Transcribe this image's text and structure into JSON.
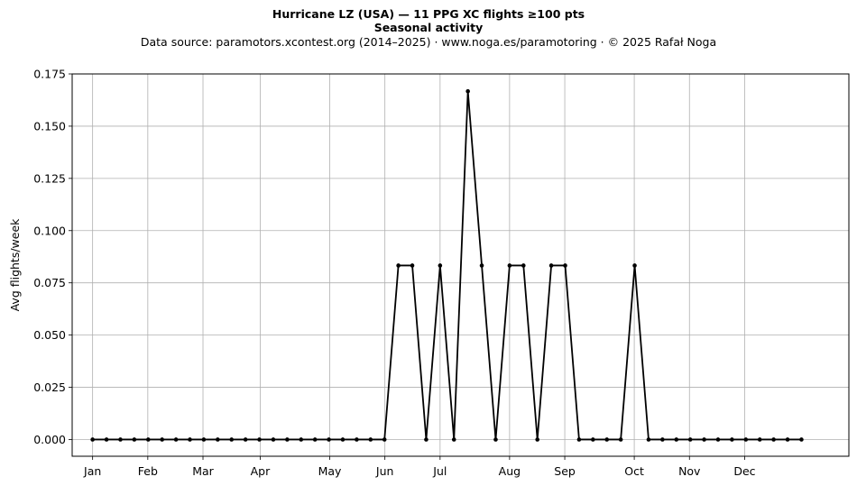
{
  "header": {
    "title": "Hurricane LZ (USA)  —  11 PPG XC flights ≥100 pts",
    "subtitle": "Seasonal activity",
    "source": "Data source: paramotors.xcontest.org (2014–2025)  ·  www.noga.es/paramotoring  ·  © 2025 Rafał Noga"
  },
  "chart_data": {
    "type": "line",
    "title": "Hurricane LZ (USA)  —  11 PPG XC flights ≥100 pts",
    "subtitle": "Seasonal activity",
    "xlabel": "",
    "ylabel": "Avg flights/week",
    "x_unit": "day of year",
    "xlim": [
      -10,
      370
    ],
    "ylim": [
      -0.008,
      0.175
    ],
    "yticks": [
      0.0,
      0.025,
      0.05,
      0.075,
      0.1,
      0.125,
      0.15,
      0.175
    ],
    "ytick_labels": [
      "0.000",
      "0.025",
      "0.050",
      "0.075",
      "0.100",
      "0.125",
      "0.150",
      "0.175"
    ],
    "xticks": [
      {
        "day": 0,
        "label": "Jan"
      },
      {
        "day": 27,
        "label": "Feb"
      },
      {
        "day": 54,
        "label": "Mar"
      },
      {
        "day": 82,
        "label": "Apr"
      },
      {
        "day": 116,
        "label": "May"
      },
      {
        "day": 143,
        "label": "Jun"
      },
      {
        "day": 170,
        "label": "Jul"
      },
      {
        "day": 204,
        "label": "Aug"
      },
      {
        "day": 231,
        "label": "Sep"
      },
      {
        "day": 265,
        "label": "Oct"
      },
      {
        "day": 292,
        "label": "Nov"
      },
      {
        "day": 319,
        "label": "Dec"
      }
    ],
    "grid": true,
    "legend": "none",
    "line_color": "#000000",
    "series": [
      {
        "x": [
          0,
          6.8,
          13.6,
          20.4,
          27.2,
          34,
          40.8,
          47.6,
          54.4,
          61.2,
          68,
          74.8,
          81.6,
          88.4,
          95.2,
          102,
          108.8,
          115.6,
          122.4,
          129.2,
          136,
          142.8,
          149.6,
          156.4,
          163.2,
          170,
          176.8,
          183.6,
          190.4,
          197.2,
          204,
          210.8,
          217.6,
          224.4,
          231.2,
          238,
          244.8,
          251.6,
          258.4,
          265.2,
          272,
          278.8,
          285.6,
          292.4,
          299.2,
          306,
          312.8,
          319.6,
          326.4,
          333.2,
          340,
          346.8
        ],
        "y": [
          0,
          0,
          0,
          0,
          0,
          0,
          0,
          0,
          0,
          0,
          0,
          0,
          0,
          0,
          0,
          0,
          0,
          0,
          0,
          0,
          0,
          0,
          0.0833,
          0.0833,
          0,
          0.0833,
          0,
          0.1667,
          0.0833,
          0,
          0.0833,
          0.0833,
          0,
          0.0833,
          0.0833,
          0,
          0,
          0,
          0,
          0.0833,
          0,
          0,
          0,
          0,
          0,
          0,
          0,
          0,
          0,
          0,
          0,
          0
        ]
      }
    ]
  }
}
